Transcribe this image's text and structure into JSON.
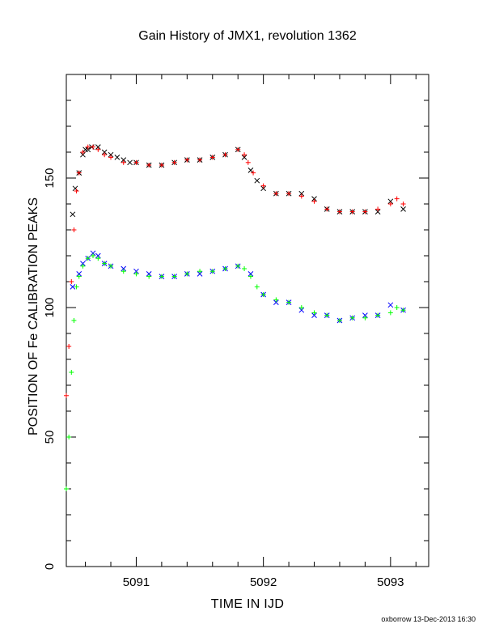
{
  "chart_data": {
    "type": "scatter",
    "title": "Gain History of JMX1, revolution 1362",
    "xlabel": "TIME IN IJD",
    "ylabel": "POSITION OF Fe CALIBRATION PEAKS",
    "xlim": [
      5090.45,
      5093.3
    ],
    "ylim": [
      0,
      190
    ],
    "xticks": [
      "5091",
      "5092",
      "5093"
    ],
    "yticks": [
      "0",
      "50",
      "100",
      "150"
    ],
    "grid": false,
    "legend": "none",
    "series": [
      {
        "color": "#000000",
        "marker": "x",
        "x": [
          5090.5,
          5090.52,
          5090.55,
          5090.58,
          5090.6,
          5090.62,
          5090.65,
          5090.7,
          5090.75,
          5090.8,
          5090.85,
          5090.9,
          5090.95,
          5091.0,
          5091.1,
          5091.2,
          5091.3,
          5091.4,
          5091.5,
          5091.6,
          5091.7,
          5091.8,
          5091.85,
          5091.9,
          5091.95,
          5092.0,
          5092.1,
          5092.2,
          5092.3,
          5092.4,
          5092.5,
          5092.6,
          5092.7,
          5092.8,
          5092.9,
          5093.0,
          5093.1
        ],
        "y": [
          136,
          146,
          152,
          159,
          161,
          161,
          162,
          162,
          160,
          159,
          158,
          157,
          156,
          156,
          155,
          155,
          156,
          157,
          157,
          158,
          159,
          161,
          158,
          153,
          149,
          146,
          144,
          144,
          144,
          142,
          138,
          137,
          137,
          137,
          137,
          141,
          138
        ]
      },
      {
        "color": "#ff0000",
        "marker": "+",
        "x": [
          5090.45,
          5090.47,
          5090.49,
          5090.51,
          5090.53,
          5090.55,
          5090.58,
          5090.62,
          5090.66,
          5090.7,
          5090.75,
          5090.8,
          5090.9,
          5091.0,
          5091.1,
          5091.2,
          5091.3,
          5091.4,
          5091.5,
          5091.6,
          5091.7,
          5091.8,
          5091.85,
          5091.88,
          5091.92,
          5092.0,
          5092.1,
          5092.2,
          5092.3,
          5092.4,
          5092.5,
          5092.6,
          5092.7,
          5092.8,
          5092.9,
          5093.0,
          5093.05,
          5093.1
        ],
        "y": [
          66,
          85,
          110,
          130,
          145,
          152,
          160,
          162,
          162,
          161,
          159,
          158,
          156,
          156,
          155,
          155,
          156,
          157,
          157,
          158,
          159,
          161,
          159,
          156,
          152,
          147,
          144,
          144,
          143,
          141,
          138,
          137,
          137,
          137,
          138,
          140,
          142,
          140
        ]
      },
      {
        "color": "#0000ff",
        "marker": "x",
        "x": [
          5090.5,
          5090.55,
          5090.58,
          5090.62,
          5090.66,
          5090.7,
          5090.75,
          5090.8,
          5090.9,
          5091.0,
          5091.1,
          5091.2,
          5091.3,
          5091.4,
          5091.5,
          5091.6,
          5091.7,
          5091.8,
          5091.9,
          5092.0,
          5092.1,
          5092.2,
          5092.3,
          5092.4,
          5092.5,
          5092.6,
          5092.7,
          5092.8,
          5092.9,
          5093.0,
          5093.1
        ],
        "y": [
          108,
          113,
          117,
          119,
          121,
          120,
          117,
          116,
          115,
          114,
          113,
          112,
          112,
          113,
          113,
          114,
          115,
          116,
          113,
          105,
          102,
          102,
          99,
          97,
          97,
          95,
          96,
          97,
          97,
          101,
          99
        ]
      },
      {
        "color": "#00ff00",
        "marker": "+",
        "x": [
          5090.45,
          5090.47,
          5090.49,
          5090.51,
          5090.53,
          5090.55,
          5090.58,
          5090.62,
          5090.66,
          5090.7,
          5090.75,
          5090.8,
          5090.9,
          5091.0,
          5091.1,
          5091.2,
          5091.3,
          5091.4,
          5091.5,
          5091.6,
          5091.7,
          5091.8,
          5091.85,
          5091.9,
          5091.95,
          5092.0,
          5092.1,
          5092.2,
          5092.3,
          5092.4,
          5092.5,
          5092.6,
          5092.7,
          5092.8,
          5092.9,
          5093.0,
          5093.05,
          5093.1
        ],
        "y": [
          30,
          50,
          75,
          95,
          108,
          112,
          116,
          119,
          120,
          119,
          117,
          116,
          114,
          113,
          112,
          112,
          112,
          113,
          114,
          114,
          115,
          116,
          115,
          112,
          108,
          105,
          103,
          102,
          100,
          98,
          97,
          95,
          96,
          96,
          97,
          98,
          100,
          99
        ]
      }
    ]
  },
  "footer": {
    "credit": "oxborrow 13-Dec-2013 16:30"
  }
}
